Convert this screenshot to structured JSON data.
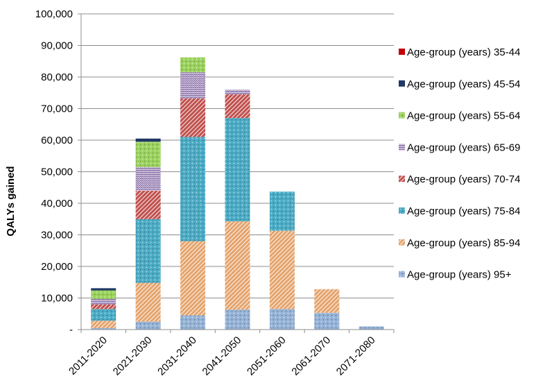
{
  "chart_data": {
    "type": "bar",
    "stacked": true,
    "title": "",
    "xlabel": "",
    "ylabel": "QALYs gained",
    "ylim": [
      0,
      100000
    ],
    "yticks": [
      {
        "value": 0,
        "label": "-"
      },
      {
        "value": 10000,
        "label": "10,000"
      },
      {
        "value": 20000,
        "label": "20,000"
      },
      {
        "value": 30000,
        "label": "30,000"
      },
      {
        "value": 40000,
        "label": "40,000"
      },
      {
        "value": 50000,
        "label": "50,000"
      },
      {
        "value": 60000,
        "label": "60,000"
      },
      {
        "value": 70000,
        "label": "70,000"
      },
      {
        "value": 80000,
        "label": "80,000"
      },
      {
        "value": 90000,
        "label": "90,000"
      },
      {
        "value": 100000,
        "label": "100,000"
      }
    ],
    "grid": "y-major",
    "legend_position": "right",
    "categories": [
      "2011-2020",
      "2021-2030",
      "2031-2040",
      "2041-2050",
      "2051-2060",
      "2061-2070",
      "2071-2080"
    ],
    "series": [
      {
        "name": "Age-group (years) 95+",
        "color": "#95b3d7",
        "pattern": "dots",
        "values": [
          500,
          2500,
          4500,
          6300,
          6500,
          5300,
          1000
        ]
      },
      {
        "name": "Age-group (years) 85-94",
        "color": "#e5a36b",
        "pattern": "diagonal",
        "values": [
          2300,
          12300,
          23500,
          28000,
          24800,
          7500,
          0
        ]
      },
      {
        "name": "Age-group (years) 75-84",
        "color": "#4bacc6",
        "pattern": "dots",
        "values": [
          3700,
          20200,
          33000,
          32700,
          12400,
          0,
          0
        ]
      },
      {
        "name": "Age-group (years) 70-74",
        "color": "#c0504d",
        "pattern": "diagonal",
        "values": [
          1500,
          9000,
          12200,
          7500,
          0,
          0,
          0
        ]
      },
      {
        "name": "Age-group (years) 65-69",
        "color": "#8064a2",
        "pattern": "zigzag",
        "values": [
          1700,
          7500,
          8300,
          1500,
          0,
          0,
          0
        ]
      },
      {
        "name": "Age-group (years) 55-64",
        "color": "#9bd35d",
        "pattern": "dots",
        "values": [
          2700,
          8000,
          4700,
          0,
          0,
          0,
          0
        ]
      },
      {
        "name": "Age-group (years) 45-54",
        "color": "#1f3864",
        "pattern": "solid",
        "values": [
          700,
          1000,
          0,
          0,
          0,
          0,
          0
        ]
      },
      {
        "name": "Age-group (years) 35-44",
        "color": "#c00000",
        "pattern": "solid",
        "values": [
          0,
          0,
          0,
          0,
          0,
          0,
          0
        ]
      }
    ],
    "legend_order": [
      "Age-group (years) 35-44",
      "Age-group (years) 45-54",
      "Age-group (years) 55-64",
      "Age-group (years) 65-69",
      "Age-group (years) 70-74",
      "Age-group (years) 75-84",
      "Age-group (years) 85-94",
      "Age-group (years) 95+"
    ]
  }
}
